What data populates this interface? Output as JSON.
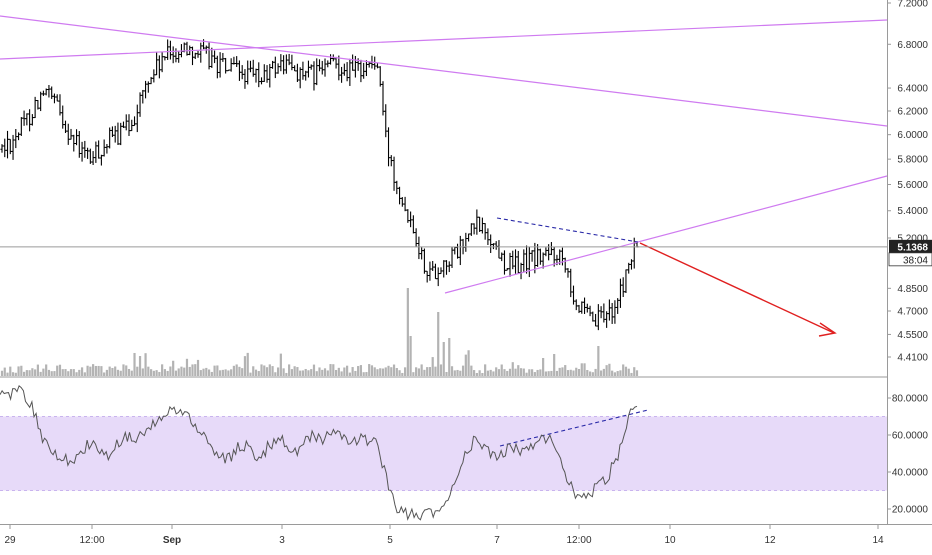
{
  "chart_data": [
    {
      "type": "ohlc-bar",
      "panel": "price",
      "colors": {
        "bars": "#000000",
        "volume": "#b3b3b3",
        "trendline": "#cf7bf0",
        "forecast_arrow": "#e02020",
        "dashed_line": "#2a2aa8",
        "last_price_bg": "#222222",
        "last_price_text": "#ffffff"
      },
      "y_axis": {
        "scale": "log",
        "ylim": [
          4.35,
          7.25
        ],
        "ticks": [
          "7.2000",
          "6.8000",
          "6.4000",
          "6.2000",
          "6.0000",
          "5.8000",
          "5.6000",
          "5.4000",
          "5.2000",
          "4.8500",
          "4.7000",
          "4.5500",
          "4.4100"
        ]
      },
      "x_axis": {
        "ticks": [
          "29",
          "12:00",
          "Sep",
          "3",
          "5",
          "7",
          "12:00",
          "10",
          "12",
          "14"
        ],
        "ticks_bold": [
          "Sep"
        ]
      },
      "last_price": "5.1368",
      "countdown": "38:04",
      "close_series": [
        5.88,
        5.95,
        6.05,
        6.15,
        6.3,
        6.35,
        6.25,
        6.1,
        5.95,
        5.85,
        5.8,
        5.88,
        5.95,
        6.0,
        6.05,
        6.2,
        6.4,
        6.55,
        6.65,
        6.72,
        6.75,
        6.78,
        6.72,
        6.68,
        6.62,
        6.58,
        6.55,
        6.52,
        6.5,
        6.48,
        6.55,
        6.62,
        6.6,
        6.55,
        6.5,
        6.52,
        6.58,
        6.62,
        6.6,
        6.55,
        6.58,
        6.62,
        6.6,
        5.9,
        5.65,
        5.45,
        5.3,
        5.05,
        4.95,
        5.0,
        5.05,
        5.1,
        5.2,
        5.3,
        5.25,
        5.15,
        5.05,
        5.0,
        5.02,
        5.05,
        5.06,
        5.08,
        5.1,
        5.05,
        4.78,
        4.68,
        4.62,
        4.65,
        4.7,
        4.78,
        5.0,
        5.14
      ]
    },
    {
      "type": "line",
      "panel": "oscillator",
      "y_axis": {
        "ylim": [
          12,
          90
        ],
        "ticks": [
          "80.0000",
          "60.0000",
          "40.0000",
          "20.0000"
        ]
      },
      "band": {
        "range": [
          30,
          70
        ],
        "color": "#e3d4f8"
      },
      "values": [
        85,
        82,
        86,
        80,
        70,
        55,
        50,
        48,
        44,
        50,
        56,
        52,
        48,
        55,
        60,
        56,
        62,
        66,
        70,
        72,
        74,
        70,
        64,
        58,
        52,
        46,
        50,
        55,
        52,
        48,
        54,
        58,
        55,
        50,
        56,
        60,
        58,
        62,
        58,
        55,
        58,
        56,
        57,
        38,
        22,
        18,
        17,
        17,
        18,
        19,
        28,
        40,
        52,
        58,
        54,
        48,
        50,
        54,
        52,
        55,
        56,
        58,
        54,
        40,
        28,
        26,
        30,
        34,
        40,
        50,
        70,
        74
      ]
    }
  ]
}
